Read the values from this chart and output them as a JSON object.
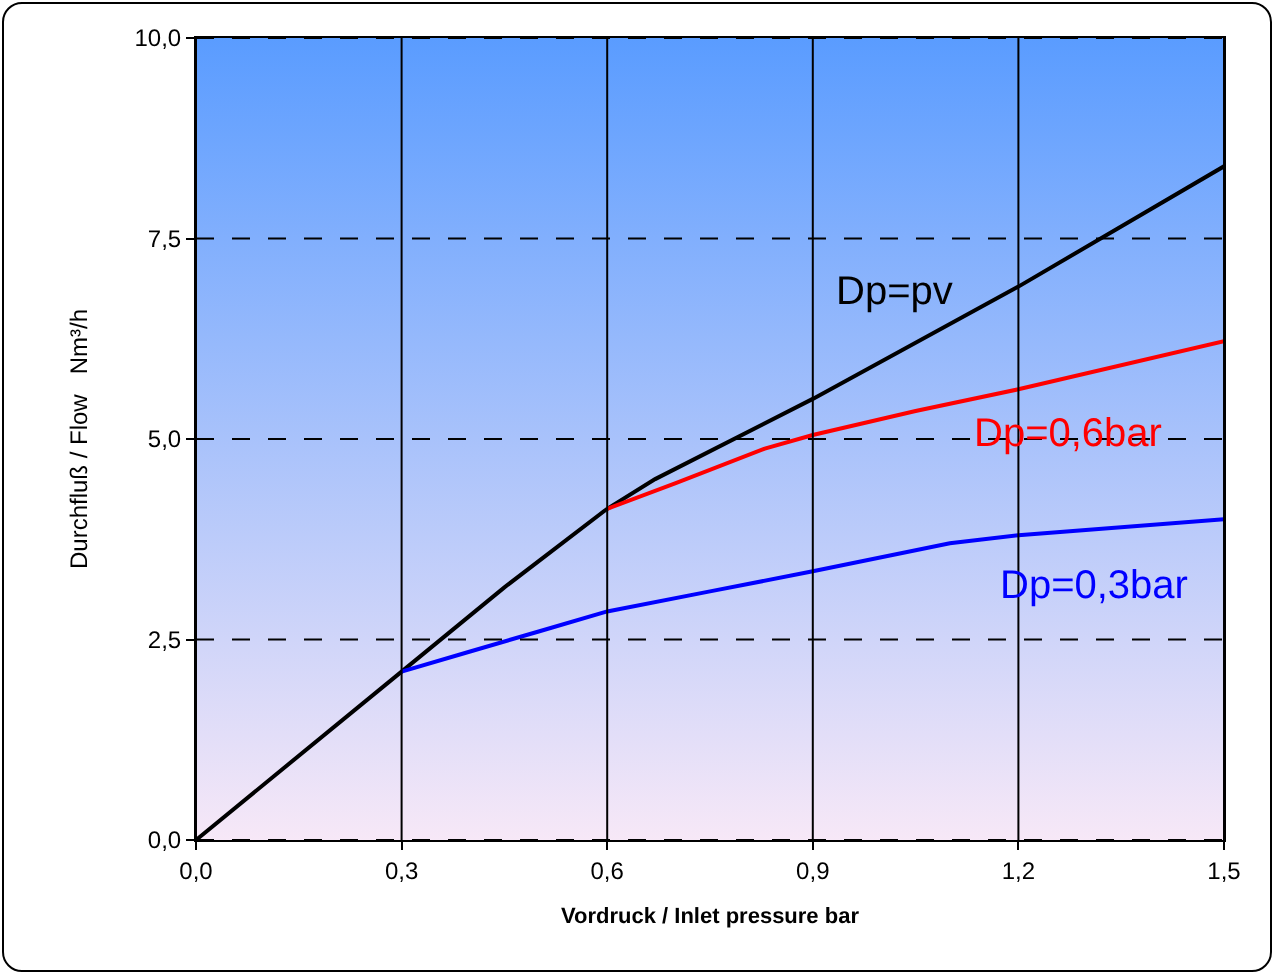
{
  "chart_data": {
    "type": "line",
    "xlabel": "Vordruck / Inlet pressure bar",
    "ylabel": "Durchfluß / Flow   Nm³/h",
    "xlim": [
      0,
      1.5
    ],
    "ylim": [
      0,
      10
    ],
    "xticks": [
      {
        "value": 0,
        "label": "0,0"
      },
      {
        "value": 0.3,
        "label": "0,3"
      },
      {
        "value": 0.6,
        "label": "0,6"
      },
      {
        "value": 0.9,
        "label": "0,9"
      },
      {
        "value": 1.2,
        "label": "1,2"
      },
      {
        "value": 1.5,
        "label": "1,5"
      }
    ],
    "yticks": [
      {
        "value": 0,
        "label": "0,0"
      },
      {
        "value": 2.5,
        "label": "2,5"
      },
      {
        "value": 5,
        "label": "5,0"
      },
      {
        "value": 7.5,
        "label": "7,5"
      },
      {
        "value": 10,
        "label": "10,0"
      }
    ],
    "grid": true,
    "legend": false,
    "series": [
      {
        "name": "Dp=pv",
        "color": "#000000",
        "x": [
          0,
          0.3,
          0.45,
          0.6,
          0.67,
          0.9,
          1.2,
          1.5
        ],
        "values": [
          0,
          2.1,
          3.15,
          4.13,
          4.5,
          5.5,
          6.9,
          8.4
        ]
      },
      {
        "name": "Dp=0,6bar",
        "color": "#ff0000",
        "x": [
          0.6,
          0.7,
          0.83,
          0.9,
          1.05,
          1.2,
          1.5
        ],
        "values": [
          4.13,
          4.45,
          4.88,
          5.05,
          5.35,
          5.62,
          6.22
        ]
      },
      {
        "name": "Dp=0,3bar",
        "color": "#0000ff",
        "x": [
          0.3,
          0.4,
          0.5,
          0.6,
          0.75,
          0.9,
          1.1,
          1.2,
          1.5
        ],
        "values": [
          2.1,
          2.35,
          2.6,
          2.85,
          3.1,
          3.35,
          3.7,
          3.8,
          4.0
        ]
      }
    ]
  }
}
